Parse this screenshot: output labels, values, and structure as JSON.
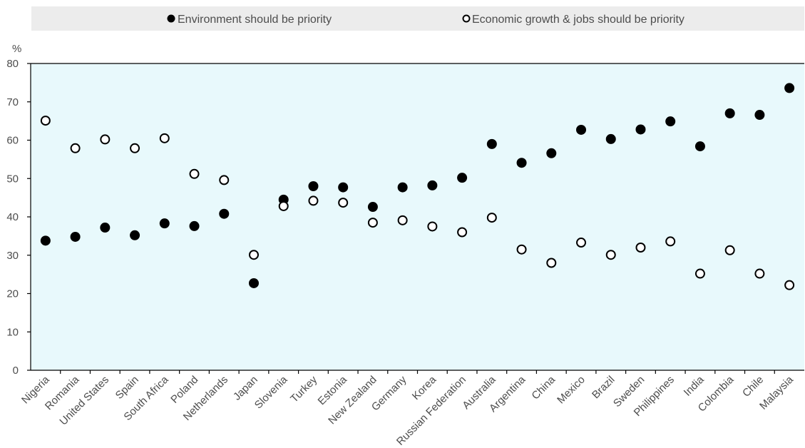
{
  "chart_data": {
    "type": "scatter",
    "yunit": "%",
    "ylim": [
      0,
      80
    ],
    "yticks": [
      0,
      10,
      20,
      30,
      40,
      50,
      60,
      70,
      80
    ],
    "legend_position": "top",
    "grid": false,
    "categories": [
      "Nigeria",
      "Romania",
      "United States",
      "Spain",
      "South Africa",
      "Poland",
      "Netherlands",
      "Japan",
      "Slovenia",
      "Turkey",
      "Estonia",
      "New Zealand",
      "Germany",
      "Korea",
      "Russian Federation",
      "Australia",
      "Argentina",
      "China",
      "Mexico",
      "Brazil",
      "Sweden",
      "Philippines",
      "India",
      "Colombia",
      "Chile",
      "Malaysia"
    ],
    "series": [
      {
        "name": "Environment should be priority",
        "marker": "filled-circle",
        "values": [
          33.8,
          34.8,
          37.2,
          35.2,
          38.3,
          37.6,
          40.8,
          22.7,
          44.5,
          48.0,
          47.7,
          42.6,
          47.7,
          48.2,
          50.2,
          59.0,
          54.1,
          56.6,
          62.7,
          60.3,
          62.8,
          64.9,
          58.4,
          67.0,
          66.6,
          73.6
        ]
      },
      {
        "name": "Economic growth & jobs should be priority",
        "marker": "hollow-circle",
        "values": [
          65.1,
          57.9,
          60.2,
          57.9,
          60.5,
          51.2,
          49.6,
          30.1,
          42.8,
          44.2,
          43.7,
          38.5,
          39.1,
          37.5,
          36.0,
          39.8,
          31.5,
          28.0,
          33.3,
          30.1,
          32.0,
          33.6,
          25.2,
          31.3,
          25.2,
          22.2
        ]
      }
    ],
    "colors": {
      "plot_background": "#e8f9fc",
      "legend_background": "#ececec",
      "marker": "#000000",
      "axis": "#000000",
      "text": "#4d4d4d"
    }
  }
}
